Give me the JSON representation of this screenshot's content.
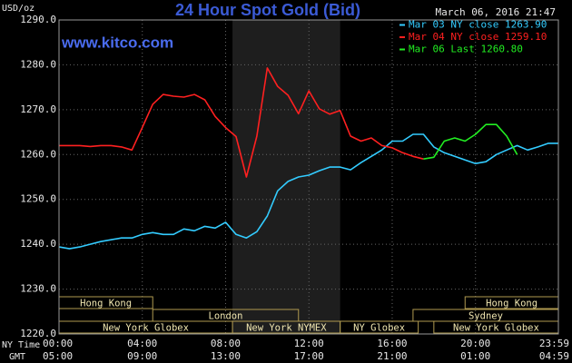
{
  "chart_data": {
    "type": "line",
    "title": "24 Hour Spot Gold (Bid)",
    "timestamp": "March 06, 2016 21:47",
    "site": "www.kitco.com",
    "y_label": "USD/oz",
    "x_label": "NY Time",
    "x2_label": "GMT",
    "x": [
      0,
      0.5,
      1,
      1.5,
      2,
      2.5,
      3,
      3.5,
      4,
      4.5,
      5,
      5.5,
      6,
      6.5,
      7,
      7.5,
      8,
      8.5,
      9,
      9.5,
      10,
      10.5,
      11,
      11.5,
      12,
      12.5,
      13,
      13.5,
      14,
      14.5,
      15,
      15.5,
      16,
      16.5,
      17,
      17.5,
      18,
      18.5,
      19,
      19.5,
      20,
      20.5,
      21,
      21.5,
      22,
      22.5,
      23,
      23.5,
      23.98
    ],
    "series": [
      {
        "name": "Mar 03 NY close 1263.90",
        "color": "#33ccff",
        "values": [
          1239.4,
          1239,
          1239.4,
          1240,
          1240.6,
          1241,
          1241.4,
          1241.4,
          1242.2,
          1242.6,
          1242.2,
          1242.2,
          1243.4,
          1243,
          1244,
          1243.6,
          1244.9,
          1242.2,
          1241.4,
          1242.8,
          1246.3,
          1251.9,
          1254,
          1255,
          1255.4,
          1256.4,
          1257.2,
          1257.2,
          1256.6,
          1258.2,
          1259.6,
          1261,
          1263,
          1263,
          1264.5,
          1264.5,
          1261.7,
          1260.4,
          1259.6,
          1258.8,
          1258,
          1258.4,
          1260,
          1261,
          1262,
          1261,
          1261.7,
          1262.5,
          1262.5
        ]
      },
      {
        "name": "Mar 04 NY close 1259.10",
        "color": "#ff2020",
        "values": [
          1262,
          1262,
          1262,
          1261.8,
          1262,
          1262,
          1261.7,
          1261,
          1266,
          1271.2,
          1273.4,
          1273,
          1272.8,
          1273.4,
          1272.2,
          1268.5,
          1266,
          1264,
          1255,
          1264.1,
          1279.3,
          1275.2,
          1273.2,
          1269.1,
          1274.2,
          1270.2,
          1269,
          1269.8,
          1264.1,
          1263,
          1263.7,
          1262,
          1261.5,
          1260.4,
          1259.6,
          1259,
          null,
          null,
          null,
          null,
          null,
          null,
          null,
          null,
          null,
          null,
          null,
          null,
          null
        ]
      },
      {
        "name": "Mar 06 Last 1260.80",
        "color": "#22ee22",
        "values": [
          null,
          null,
          null,
          null,
          null,
          null,
          null,
          null,
          null,
          null,
          null,
          null,
          null,
          null,
          null,
          null,
          null,
          null,
          null,
          null,
          null,
          null,
          null,
          null,
          null,
          null,
          null,
          null,
          null,
          null,
          null,
          null,
          null,
          null,
          null,
          1259,
          1259.4,
          1263,
          1263.7,
          1263,
          1264.5,
          1266.7,
          1266.7,
          1264.1,
          1260,
          null,
          null,
          null,
          null
        ]
      }
    ],
    "xlim": [
      0,
      23.98
    ],
    "xticks": [
      {
        "value": 0,
        "label": "00:00"
      },
      {
        "value": 4,
        "label": "04:00"
      },
      {
        "value": 8,
        "label": "08:00"
      },
      {
        "value": 12,
        "label": "12:00"
      },
      {
        "value": 16,
        "label": "16:00"
      },
      {
        "value": 20,
        "label": "20:00"
      },
      {
        "value": 23.98,
        "label": "23:59"
      }
    ],
    "x2ticks": [
      {
        "value": 0,
        "label": "05:00"
      },
      {
        "value": 4,
        "label": "09:00"
      },
      {
        "value": 8,
        "label": "13:00"
      },
      {
        "value": 12,
        "label": "17:00"
      },
      {
        "value": 16,
        "label": "21:00"
      },
      {
        "value": 20,
        "label": "01:00"
      },
      {
        "value": 23.98,
        "label": "04:59"
      }
    ],
    "ylim": [
      1220,
      1290
    ],
    "yticks": [
      {
        "value": 1220,
        "label": "1220.0"
      },
      {
        "value": 1230,
        "label": "1230.0"
      },
      {
        "value": 1240,
        "label": "1240.0"
      },
      {
        "value": 1250,
        "label": "1250.0"
      },
      {
        "value": 1260,
        "label": "1260.0"
      },
      {
        "value": 1270,
        "label": "1270.0"
      },
      {
        "value": 1280,
        "label": "1280.0"
      },
      {
        "value": 1290,
        "label": "1290.0"
      }
    ],
    "grid": true,
    "sessions": [
      [
        {
          "label": "Hong Kong",
          "start": 0,
          "end": 4.5
        },
        {
          "label": "Hong Kong",
          "start": 19.5,
          "end": 23.98
        }
      ],
      [
        {
          "label": "London",
          "start": 4.5,
          "end": 11.5
        },
        {
          "label": "Sydney",
          "start": 17,
          "end": 23.98
        }
      ],
      [
        {
          "label": "New York Globex",
          "start": 0,
          "end": 8.33
        },
        {
          "label": "New York NYMEX",
          "start": 8.33,
          "end": 13.5,
          "shaded": true
        },
        {
          "label": "NY Globex",
          "start": 13.5,
          "end": 17.25
        },
        {
          "label": "New York Globex",
          "start": 18,
          "end": 23.98
        }
      ]
    ]
  }
}
